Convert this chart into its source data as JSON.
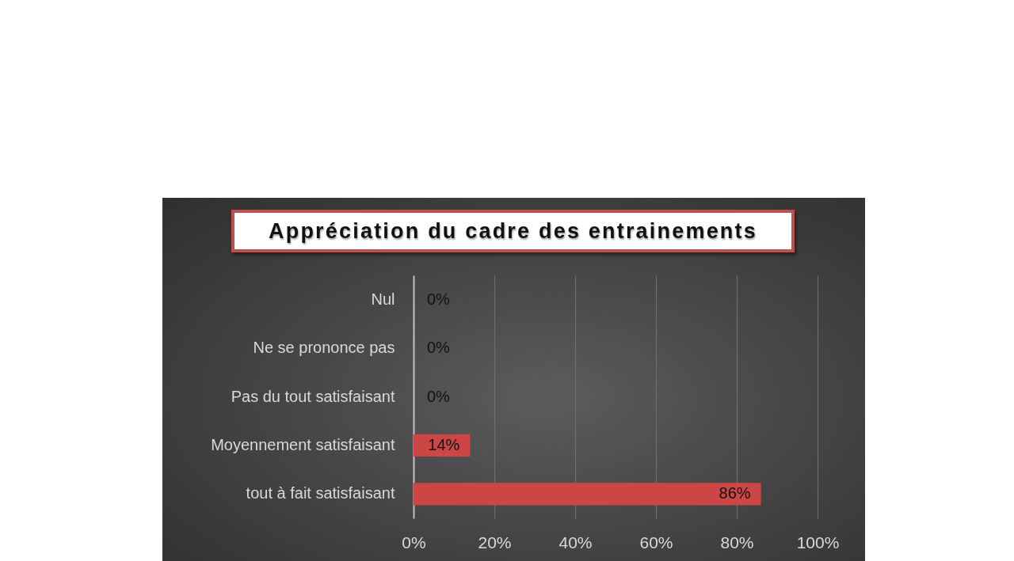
{
  "chart_data": {
    "type": "bar",
    "orientation": "horizontal",
    "title": "Appréciation du cadre des entrainements",
    "categories": [
      "Nul",
      "Ne se prononce pas",
      "Pas du tout satisfaisant",
      "Moyennement satisfaisant",
      "tout à fait satisfaisant"
    ],
    "values": [
      0,
      0,
      0,
      14,
      86
    ],
    "value_labels": [
      "0%",
      "0%",
      "0%",
      "14%",
      "86%"
    ],
    "color": "#cc4646",
    "xlim": [
      0,
      100
    ],
    "xticks": [
      {
        "value": 0,
        "label": "0%"
      },
      {
        "value": 20,
        "label": "20%"
      },
      {
        "value": 40,
        "label": "40%"
      },
      {
        "value": 60,
        "label": "60%"
      },
      {
        "value": 80,
        "label": "80%"
      },
      {
        "value": 100,
        "label": "100%"
      }
    ],
    "grid": "x"
  }
}
